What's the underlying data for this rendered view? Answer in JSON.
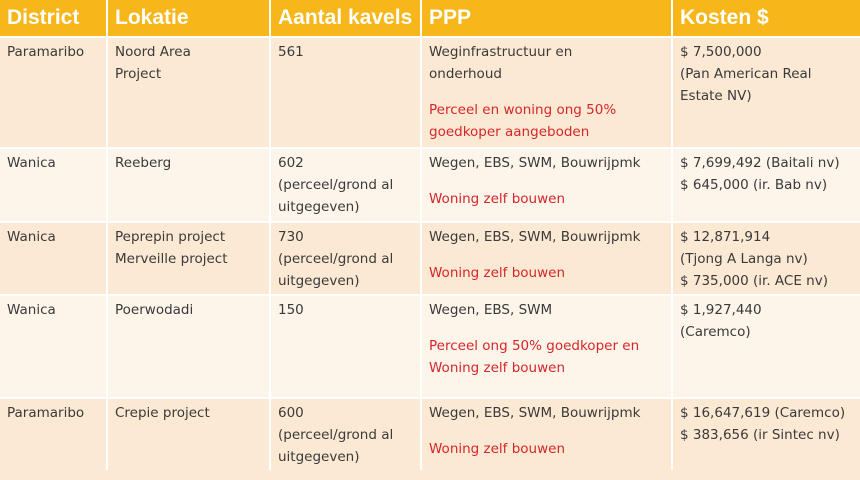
{
  "header": {
    "district": "District",
    "lokatie": "Lokatie",
    "aantal": "Aantal kavels",
    "ppp": "PPP",
    "kosten": "Kosten $"
  },
  "rows": [
    {
      "district": "Paramaribo",
      "lokatie": [
        "Noord Area",
        "Project"
      ],
      "aantal": [
        "561"
      ],
      "ppp": [
        "Weginfrastructuur en",
        "onderhoud"
      ],
      "ppp_note": [
        "Perceel en woning ong 50%",
        "goedkoper aangeboden"
      ],
      "kosten": [
        "$ 7,500,000",
        "(Pan American Real",
        "Estate NV)"
      ]
    },
    {
      "district": "Wanica",
      "lokatie": [
        "Reeberg"
      ],
      "aantal": [
        "602",
        "(perceel/grond al",
        "uitgegeven)"
      ],
      "ppp": [
        "Wegen, EBS, SWM, Bouwrijpmk"
      ],
      "ppp_note": [
        "Woning zelf bouwen"
      ],
      "kosten": [
        "$ 7,699,492 (Baitali nv)",
        "$ 645,000 (ir. Bab nv)"
      ]
    },
    {
      "district": "Wanica",
      "lokatie": [
        "Peprepin project",
        "Merveille project"
      ],
      "aantal": [
        "730",
        "(perceel/grond al",
        "uitgegeven)"
      ],
      "ppp": [
        "Wegen, EBS, SWM, Bouwrijpmk"
      ],
      "ppp_note": [
        "Woning zelf bouwen"
      ],
      "kosten": [
        "$ 12,871,914",
        "(Tjong A Langa nv)",
        "$ 735,000 (ir. ACE nv)"
      ]
    },
    {
      "district": "Wanica",
      "lokatie": [
        "Poerwodadi"
      ],
      "aantal": [
        "150"
      ],
      "ppp": [
        "Wegen, EBS, SWM"
      ],
      "ppp_note": [
        "Perceel ong 50% goedkoper en",
        "Woning zelf bouwen"
      ],
      "kosten": [
        "$ 1,927,440",
        "(Caremco)"
      ]
    },
    {
      "district": "Paramaribo",
      "lokatie": [
        "Crepie project"
      ],
      "aantal": [
        "600",
        "(perceel/grond al",
        "uitgegeven)"
      ],
      "ppp": [
        "Wegen, EBS, SWM, Bouwrijpmk"
      ],
      "ppp_note": [
        "Woning zelf bouwen"
      ],
      "kosten": [
        "$ 16,647,619 (Caremco)",
        "$ 383,656 (ir Sintec nv)"
      ]
    }
  ],
  "colors": {
    "header_bg": "#f7b61a",
    "header_text": "#ffffff",
    "row_odd": "#fce9d4",
    "row_even": "#fdf4ea",
    "note_red": "#d7262b",
    "body_text": "#3a3a3a"
  }
}
